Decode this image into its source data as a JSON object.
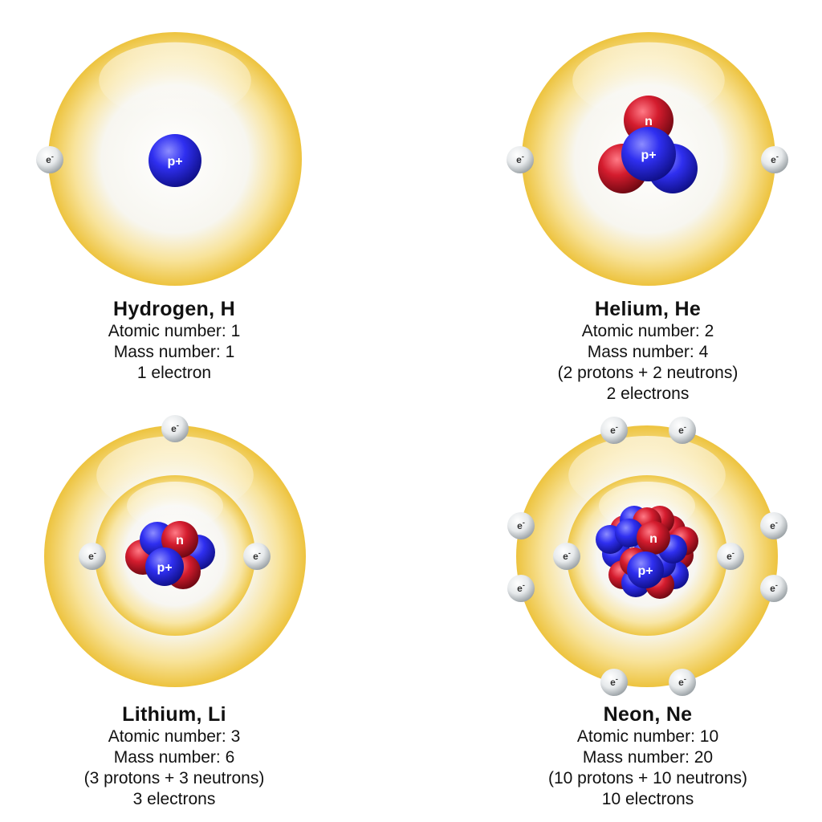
{
  "colors": {
    "shell": "#f2c94c",
    "shell_dark": "#e2b22a",
    "proton": "#2a2ae6",
    "neutron": "#cc1a2a",
    "electron": "#d8dde0"
  },
  "particle_labels": {
    "proton": "p+",
    "neutron": "n",
    "electron": "e-"
  },
  "atoms": [
    {
      "id": "hydrogen",
      "title": "Hydrogen, H",
      "lines": [
        "Atomic number: 1",
        "Mass number: 1",
        "1 electron"
      ],
      "protons": 1,
      "neutrons": 0,
      "electrons": 1,
      "shells": 1
    },
    {
      "id": "helium",
      "title": "Helium, He",
      "lines": [
        "Atomic number: 2",
        "Mass number: 4",
        "(2 protons + 2 neutrons)",
        "2 electrons"
      ],
      "protons": 2,
      "neutrons": 2,
      "electrons": 2,
      "shells": 1
    },
    {
      "id": "lithium",
      "title": "Lithium, Li",
      "lines": [
        "Atomic number: 3",
        "Mass number: 6",
        "(3 protons + 3 neutrons)",
        "3 electrons"
      ],
      "protons": 3,
      "neutrons": 3,
      "electrons": 3,
      "shells": 2
    },
    {
      "id": "neon",
      "title": "Neon, Ne",
      "lines": [
        "Atomic number: 10",
        "Mass number: 20",
        "(10 protons + 10 neutrons)",
        "10 electrons"
      ],
      "protons": 10,
      "neutrons": 10,
      "electrons": 10,
      "shells": 2
    }
  ]
}
